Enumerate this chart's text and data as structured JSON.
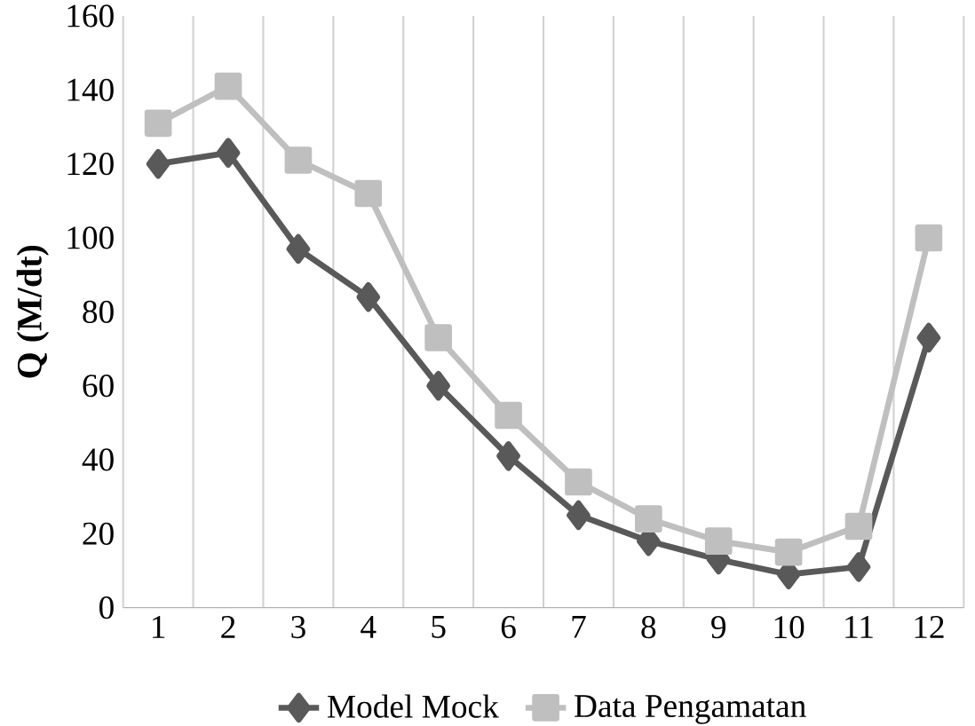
{
  "chart_data": {
    "type": "line",
    "ylabel": "Q (M/dt)",
    "categories": [
      "1",
      "2",
      "3",
      "4",
      "5",
      "6",
      "7",
      "8",
      "9",
      "10",
      "11",
      "12"
    ],
    "series": [
      {
        "name": "Model Mock",
        "color": "#595959",
        "marker": "diamond",
        "values": [
          120,
          123,
          97,
          84,
          60,
          41,
          25,
          18,
          13,
          9,
          11,
          73
        ]
      },
      {
        "name": "Data Pengamatan",
        "color": "#bfbfbf",
        "marker": "square",
        "values": [
          131,
          141,
          121,
          112,
          73,
          52,
          34,
          24,
          18,
          15,
          22,
          100
        ]
      }
    ],
    "ylim": [
      0,
      160
    ],
    "yticks": [
      0,
      20,
      40,
      60,
      80,
      100,
      120,
      140,
      160
    ],
    "grid": "x",
    "legend": "bottom",
    "line_style": "solid"
  }
}
